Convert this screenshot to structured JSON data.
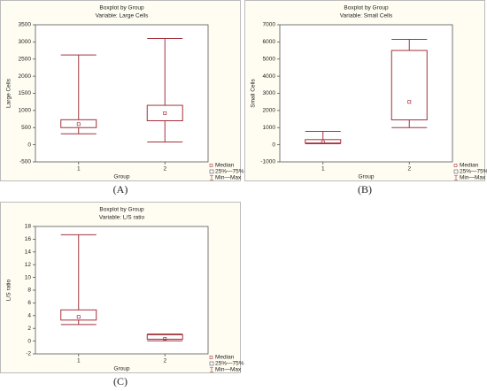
{
  "chart_data": [
    {
      "type": "box",
      "title": "Boxplot by Group",
      "subtitle": "Variable: Large Cells",
      "xlabel": "Group",
      "ylabel": "Large Cells",
      "panel_label": "(A)",
      "categories": [
        "1",
        "2"
      ],
      "color": "#a3323c",
      "boxes": [
        {
          "min": 320,
          "q1": 500,
          "median": 600,
          "q3": 730,
          "max": 2620
        },
        {
          "min": 80,
          "q1": 700,
          "median": 920,
          "q3": 1150,
          "max": 3100
        }
      ],
      "ylim": [
        -500,
        3500
      ],
      "yticks": [
        -500,
        0,
        500,
        1000,
        1500,
        2000,
        2500,
        3000,
        3500
      ],
      "legend": [
        "Median",
        "25%—75%",
        "Min—Max"
      ]
    },
    {
      "type": "box",
      "title": "Boxplot by Group",
      "subtitle": "Variable: Small Cells",
      "xlabel": "Group",
      "ylabel": "Small Cells",
      "panel_label": "(B)",
      "categories": [
        "1",
        "2"
      ],
      "color": "#a3323c",
      "boxes": [
        {
          "min": 60,
          "q1": 100,
          "median": 150,
          "q3": 300,
          "max": 780
        },
        {
          "min": 1000,
          "q1": 1450,
          "median": 2500,
          "q3": 5500,
          "max": 6150
        }
      ],
      "ylim": [
        -1000,
        7000
      ],
      "yticks": [
        -1000,
        0,
        1000,
        2000,
        3000,
        4000,
        5000,
        6000,
        7000
      ],
      "legend": [
        "Median",
        "25%—75%",
        "Min—Max"
      ]
    },
    {
      "type": "box",
      "title": "Boxplot by Group",
      "subtitle": "Variable: L/S ratio",
      "xlabel": "Group",
      "ylabel": "L/S ratio",
      "panel_label": "(C)",
      "categories": [
        "1",
        "2"
      ],
      "color": "#a3323c",
      "boxes": [
        {
          "min": 2.6,
          "q1": 3.3,
          "median": 3.8,
          "q3": 4.9,
          "max": 16.7
        },
        {
          "min": 0.05,
          "q1": 0.3,
          "median": 0.35,
          "q3": 1.0,
          "max": 1.1
        }
      ],
      "ylim": [
        -2,
        18
      ],
      "yticks": [
        -2,
        0,
        2,
        4,
        6,
        8,
        10,
        12,
        14,
        16,
        18
      ],
      "legend": [
        "Median",
        "25%—75%",
        "Min—Max"
      ]
    }
  ]
}
